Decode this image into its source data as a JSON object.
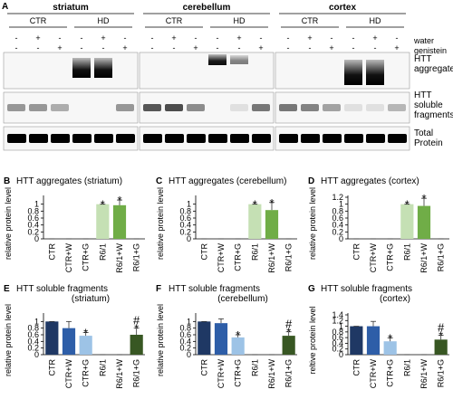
{
  "blot": {
    "letter": "A",
    "row_names": [
      "water",
      "genistein"
    ],
    "band_labels": [
      [
        "HTT",
        "aggregates"
      ],
      [
        "HTT",
        "soluble",
        "fragments"
      ],
      [
        "Total",
        "Protein"
      ]
    ],
    "tissues": [
      {
        "name": "striatum",
        "groups": [
          "CTR",
          "HD"
        ],
        "signs": [
          [
            "-",
            "+",
            "-",
            "-",
            "+",
            "-"
          ],
          [
            "-",
            "-",
            "+",
            "-",
            "-",
            "+"
          ]
        ]
      },
      {
        "name": "cerebellum",
        "groups": [
          "CTR",
          "HD"
        ],
        "signs": [
          [
            "-",
            "+",
            "-",
            "-",
            "+",
            "-"
          ],
          [
            "-",
            "-",
            "+",
            "-",
            "-",
            "+"
          ]
        ]
      },
      {
        "name": "cortex",
        "groups": [
          "CTR",
          "HD"
        ],
        "signs": [
          [
            "-",
            "+",
            "-",
            "-",
            "+",
            "-"
          ],
          [
            "-",
            "-",
            "+",
            "-",
            "-",
            "+"
          ]
        ]
      }
    ]
  },
  "chart_data": [
    {
      "type": "bar",
      "letter": "B",
      "title": "HTT aggregates (striatum)",
      "y_label": "relative protein level",
      "categories": [
        "CTR",
        "CTR+W",
        "CTR+G",
        "R6/1",
        "R6/1+W",
        "R6/1+G"
      ],
      "values": [
        0,
        0,
        0,
        1,
        0.97,
        0
      ],
      "errors": [
        0,
        0,
        0,
        0,
        0.15,
        0
      ],
      "colors": [
        "#1f3864",
        "#2e5ea8",
        "#9dc3e6",
        "#c5e0b4",
        "#70ad47",
        "#385723"
      ],
      "annotations": [
        {
          "category": "R6/1",
          "text": "*"
        },
        {
          "category": "R6/1+W",
          "text": "*"
        }
      ],
      "ylim": [
        0,
        1.2
      ],
      "yticks": [
        0,
        0.2,
        0.4,
        0.6,
        0.8,
        1
      ]
    },
    {
      "type": "bar",
      "letter": "C",
      "title": "HTT aggregates (cerebellum)",
      "y_label": "relative protein level",
      "categories": [
        "CTR",
        "CTR+W",
        "CTR+G",
        "R6/1",
        "R6/1+W",
        "R6/1+G"
      ],
      "values": [
        0,
        0,
        0,
        1,
        0.83,
        0
      ],
      "errors": [
        0,
        0,
        0,
        0,
        0.22,
        0
      ],
      "colors": [
        "#1f3864",
        "#2e5ea8",
        "#9dc3e6",
        "#c5e0b4",
        "#70ad47",
        "#385723"
      ],
      "annotations": [
        {
          "category": "R6/1",
          "text": "*"
        },
        {
          "category": "R6/1+W",
          "text": "*"
        }
      ],
      "ylim": [
        0,
        1.2
      ],
      "yticks": [
        0,
        0.2,
        0.4,
        0.6,
        0.8,
        1
      ]
    },
    {
      "type": "bar",
      "letter": "D",
      "title": "HTT aggregates (cortex)",
      "y_label": "relative protein level",
      "categories": [
        "CTR",
        "CTR+W",
        "CTR+G",
        "R6/1",
        "R6/1+W",
        "R6/1+G"
      ],
      "values": [
        0,
        0,
        0,
        1,
        0.95,
        0
      ],
      "errors": [
        0,
        0,
        0,
        0,
        0.22,
        0
      ],
      "colors": [
        "#1f3864",
        "#2e5ea8",
        "#9dc3e6",
        "#c5e0b4",
        "#70ad47",
        "#385723"
      ],
      "annotations": [
        {
          "category": "R6/1",
          "text": "*"
        },
        {
          "category": "R6/1+W",
          "text": "*"
        }
      ],
      "ylim": [
        0,
        1.2
      ],
      "yticks": [
        0,
        0.2,
        0.4,
        0.6,
        0.8,
        1,
        1.2
      ]
    },
    {
      "type": "bar",
      "letter": "E",
      "title": "HTT soluble fragments",
      "subtitle": "(striatum)",
      "y_label": "relative protein level",
      "categories": [
        "CTR",
        "CTR+W",
        "CTR+G",
        "R6/1",
        "R6/1+W",
        "R6/1+G"
      ],
      "values": [
        1,
        0.8,
        0.57,
        0,
        0,
        0.6
      ],
      "errors": [
        0,
        0.2,
        0.1,
        0,
        0,
        0.2
      ],
      "colors": [
        "#1f3864",
        "#2e5ea8",
        "#9dc3e6",
        "#c5e0b4",
        "#70ad47",
        "#385723"
      ],
      "annotations": [
        {
          "category": "CTR+G",
          "text": "*"
        },
        {
          "category": "R6/1+G",
          "text": "*"
        },
        {
          "category": "R6/1+G",
          "text": "#"
        }
      ],
      "ylim": [
        0,
        1.2
      ],
      "yticks": [
        0,
        0.2,
        0.4,
        0.6,
        0.8,
        1
      ]
    },
    {
      "type": "bar",
      "letter": "F",
      "title": "HTT soluble fragments",
      "subtitle": "(cerebellum)",
      "y_label": "relative protein level",
      "categories": [
        "CTR",
        "CTR+W",
        "CTR+G",
        "R6/1",
        "R6/1+W",
        "R6/1+G"
      ],
      "values": [
        1,
        0.95,
        0.52,
        0,
        0,
        0.57
      ],
      "errors": [
        0,
        0.13,
        0.08,
        0,
        0,
        0.12
      ],
      "colors": [
        "#1f3864",
        "#2e5ea8",
        "#9dc3e6",
        "#c5e0b4",
        "#70ad47",
        "#385723"
      ],
      "annotations": [
        {
          "category": "CTR+G",
          "text": "*"
        },
        {
          "category": "R6/1+G",
          "text": "*"
        },
        {
          "category": "R6/1+G",
          "text": "#"
        }
      ],
      "ylim": [
        0,
        1.2
      ],
      "yticks": [
        0,
        0.2,
        0.4,
        0.6,
        0.8,
        1
      ]
    },
    {
      "type": "bar",
      "letter": "G",
      "title": "HTT soluble fragments",
      "subtitle": "(cortex)",
      "y_label": "reltive protein level",
      "categories": [
        "CTR",
        "CTR+W",
        "CTR+G",
        "R6/1",
        "R6/1+W",
        "R6/1+G"
      ],
      "values": [
        1,
        1,
        0.47,
        0,
        0,
        0.53
      ],
      "errors": [
        0,
        0.17,
        0.12,
        0,
        0,
        0.15
      ],
      "colors": [
        "#1f3864",
        "#2e5ea8",
        "#9dc3e6",
        "#c5e0b4",
        "#70ad47",
        "#385723"
      ],
      "annotations": [
        {
          "category": "CTR+G",
          "text": "*"
        },
        {
          "category": "R6/1+G",
          "text": "*"
        },
        {
          "category": "R6/1+G",
          "text": "#"
        }
      ],
      "ylim": [
        0,
        1.4
      ],
      "yticks": [
        0,
        0.2,
        0.4,
        0.6,
        0.8,
        1,
        1.2,
        1.4
      ]
    }
  ]
}
